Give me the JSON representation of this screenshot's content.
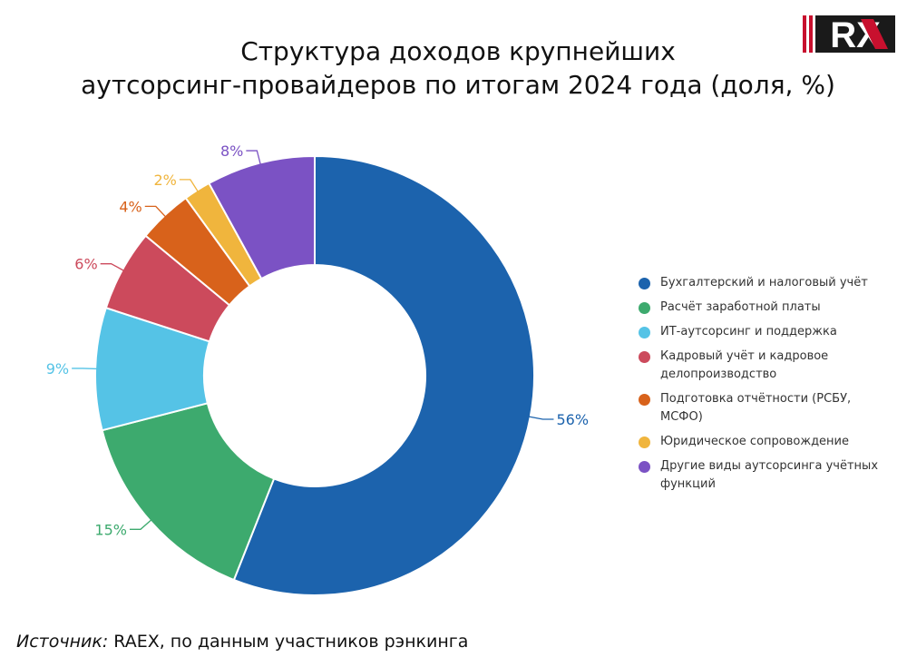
{
  "title": {
    "line1": "Структура доходов крупнейших",
    "line2": "аутсорсинг-провайдеров по итогам 2024 года (доля, %)"
  },
  "logo": {
    "text": "RX"
  },
  "source": {
    "label": "Источник:",
    "text": " RAEX, по данным участников рэнкинга"
  },
  "chart_data": {
    "type": "donut",
    "title": "Структура доходов крупнейших аутсорсинг-провайдеров по итогам 2024 года (доля, %)",
    "legend_position": "right",
    "categories": [
      "Бухгалтерский и налоговый учёт",
      "Расчёт заработной платы",
      "ИТ-аутсорсинг и поддержка",
      "Кадровый учёт и кадровое делопроизводство",
      "Подготовка отчётности (РСБУ, МСФО)",
      "Юридическое сопровождение",
      "Другие виды аутсорсинга учётных функций"
    ],
    "values": [
      56,
      15,
      9,
      6,
      4,
      2,
      8
    ],
    "data_labels": [
      "56%",
      "15%",
      "9%",
      "6%",
      "4%",
      "2%",
      "8%"
    ],
    "colors": [
      "#1c63ad",
      "#3daa6e",
      "#55c3e6",
      "#cc4a5c",
      "#d8621b",
      "#f0b53d",
      "#7b52c4"
    ]
  }
}
